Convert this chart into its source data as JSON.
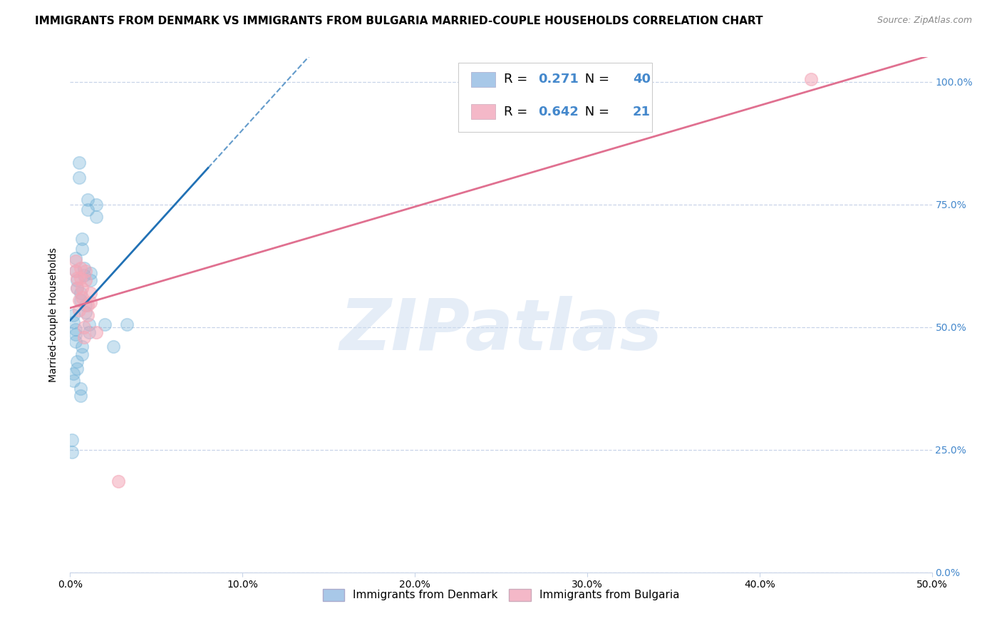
{
  "title": "IMMIGRANTS FROM DENMARK VS IMMIGRANTS FROM BULGARIA MARRIED-COUPLE HOUSEHOLDS CORRELATION CHART",
  "source": "Source: ZipAtlas.com",
  "xlabel_ticks": [
    "0.0%",
    "10.0%",
    "20.0%",
    "30.0%",
    "40.0%",
    "50.0%"
  ],
  "ylabel_ticks": [
    "0.0%",
    "25.0%",
    "50.0%",
    "75.0%",
    "100.0%"
  ],
  "ylabel": "Married-couple Households",
  "xlim": [
    0.0,
    0.5
  ],
  "ylim": [
    0.0,
    1.05
  ],
  "denmark_points": [
    [
      0.005,
      0.835
    ],
    [
      0.005,
      0.805
    ],
    [
      0.01,
      0.76
    ],
    [
      0.01,
      0.74
    ],
    [
      0.015,
      0.75
    ],
    [
      0.015,
      0.725
    ],
    [
      0.007,
      0.68
    ],
    [
      0.007,
      0.66
    ],
    [
      0.003,
      0.64
    ],
    [
      0.003,
      0.615
    ],
    [
      0.008,
      0.62
    ],
    [
      0.008,
      0.605
    ],
    [
      0.012,
      0.61
    ],
    [
      0.012,
      0.595
    ],
    [
      0.004,
      0.595
    ],
    [
      0.004,
      0.58
    ],
    [
      0.006,
      0.57
    ],
    [
      0.006,
      0.555
    ],
    [
      0.009,
      0.545
    ],
    [
      0.009,
      0.53
    ],
    [
      0.002,
      0.525
    ],
    [
      0.002,
      0.51
    ],
    [
      0.011,
      0.505
    ],
    [
      0.011,
      0.49
    ],
    [
      0.003,
      0.485
    ],
    [
      0.003,
      0.47
    ],
    [
      0.007,
      0.46
    ],
    [
      0.007,
      0.445
    ],
    [
      0.004,
      0.43
    ],
    [
      0.004,
      0.415
    ],
    [
      0.002,
      0.405
    ],
    [
      0.002,
      0.39
    ],
    [
      0.006,
      0.375
    ],
    [
      0.006,
      0.36
    ],
    [
      0.001,
      0.27
    ],
    [
      0.001,
      0.245
    ],
    [
      0.003,
      0.495
    ],
    [
      0.02,
      0.505
    ],
    [
      0.025,
      0.46
    ],
    [
      0.033,
      0.505
    ]
  ],
  "bulgaria_points": [
    [
      0.003,
      0.635
    ],
    [
      0.003,
      0.615
    ],
    [
      0.006,
      0.62
    ],
    [
      0.006,
      0.6
    ],
    [
      0.009,
      0.615
    ],
    [
      0.009,
      0.595
    ],
    [
      0.004,
      0.6
    ],
    [
      0.004,
      0.58
    ],
    [
      0.007,
      0.58
    ],
    [
      0.007,
      0.56
    ],
    [
      0.012,
      0.57
    ],
    [
      0.012,
      0.55
    ],
    [
      0.005,
      0.555
    ],
    [
      0.005,
      0.535
    ],
    [
      0.01,
      0.545
    ],
    [
      0.01,
      0.525
    ],
    [
      0.008,
      0.5
    ],
    [
      0.008,
      0.48
    ],
    [
      0.015,
      0.49
    ],
    [
      0.028,
      0.185
    ],
    [
      0.43,
      1.005
    ]
  ],
  "denmark_color": "#6baed6",
  "bulgaria_color": "#f4a8b8",
  "denmark_line_color": "#2171b5",
  "bulgaria_line_color": "#e07090",
  "watermark_text": "ZIPatlas",
  "background_color": "#ffffff",
  "grid_color": "#c8d4e8",
  "title_fontsize": 11,
  "source_fontsize": 9,
  "axis_label_fontsize": 10,
  "tick_fontsize": 10,
  "right_tick_color": "#4488cc",
  "legend_R1": "0.271",
  "legend_N1": "40",
  "legend_R2": "0.642",
  "legend_N2": "21",
  "legend_patch_color1": "#a8c8e8",
  "legend_patch_color2": "#f4b8c8"
}
